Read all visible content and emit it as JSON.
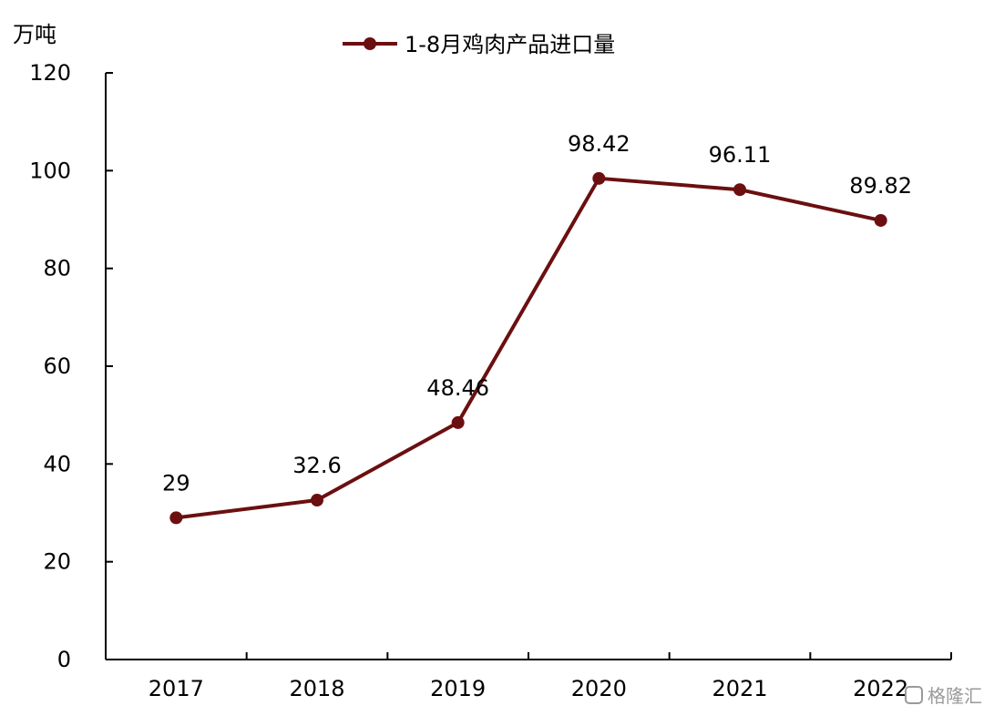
{
  "chart_data": {
    "type": "line",
    "categories": [
      "2017",
      "2018",
      "2019",
      "2020",
      "2021",
      "2022"
    ],
    "series": [
      {
        "name": "1-8月鸡肉产品进口量",
        "values": [
          29,
          32.6,
          48.46,
          98.42,
          96.11,
          89.82
        ],
        "labels": [
          "29",
          "32.6",
          "48.46",
          "98.42",
          "96.11",
          "89.82"
        ]
      }
    ],
    "ylabel": "万吨",
    "ylim": [
      0,
      120
    ],
    "yticks": [
      "0",
      "20",
      "40",
      "60",
      "80",
      "100",
      "120"
    ],
    "grid": false,
    "legend_position": "top",
    "colors": {
      "series": "#6b0f10",
      "axis": "#000000"
    }
  },
  "watermark": "格隆汇"
}
